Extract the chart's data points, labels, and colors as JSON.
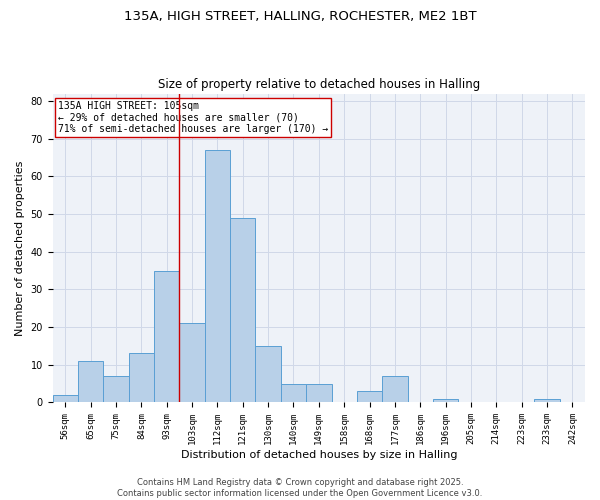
{
  "title_line1": "135A, HIGH STREET, HALLING, ROCHESTER, ME2 1BT",
  "title_line2": "Size of property relative to detached houses in Halling",
  "xlabel": "Distribution of detached houses by size in Halling",
  "ylabel": "Number of detached properties",
  "categories": [
    "56sqm",
    "65sqm",
    "75sqm",
    "84sqm",
    "93sqm",
    "103sqm",
    "112sqm",
    "121sqm",
    "130sqm",
    "140sqm",
    "149sqm",
    "158sqm",
    "168sqm",
    "177sqm",
    "186sqm",
    "196sqm",
    "205sqm",
    "214sqm",
    "223sqm",
    "233sqm",
    "242sqm"
  ],
  "values": [
    2,
    11,
    7,
    13,
    35,
    21,
    67,
    49,
    15,
    5,
    5,
    0,
    3,
    7,
    0,
    1,
    0,
    0,
    0,
    1,
    0
  ],
  "bar_color": "#b8d0e8",
  "bar_edge_color": "#5a9fd4",
  "property_bin_index": 5,
  "vline_color": "#cc0000",
  "annotation_text": "135A HIGH STREET: 105sqm\n← 29% of detached houses are smaller (70)\n71% of semi-detached houses are larger (170) →",
  "annotation_box_color": "#ffffff",
  "annotation_box_edge_color": "#cc0000",
  "ylim": [
    0,
    82
  ],
  "yticks": [
    0,
    10,
    20,
    30,
    40,
    50,
    60,
    70,
    80
  ],
  "grid_color": "#d0d8e8",
  "background_color": "#eef2f8",
  "footer_text": "Contains HM Land Registry data © Crown copyright and database right 2025.\nContains public sector information licensed under the Open Government Licence v3.0.",
  "title_fontsize": 9.5,
  "subtitle_fontsize": 8.5,
  "axis_label_fontsize": 8,
  "tick_fontsize": 6.5,
  "annotation_fontsize": 7,
  "footer_fontsize": 6
}
